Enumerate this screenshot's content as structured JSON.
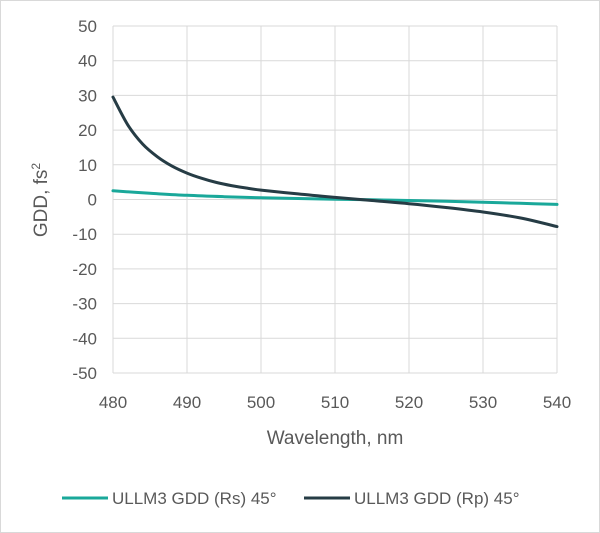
{
  "chart_data": {
    "type": "line",
    "title": "",
    "xlabel": "Wavelength, nm",
    "ylabel_main": "GDD, fs",
    "ylabel_sup": "2",
    "xlim": [
      480,
      540
    ],
    "ylim": [
      -50,
      50
    ],
    "x_ticks": [
      "480",
      "490",
      "500",
      "510",
      "520",
      "530",
      "540"
    ],
    "y_ticks": [
      "50",
      "40",
      "30",
      "20",
      "10",
      "0",
      "-10",
      "-20",
      "-30",
      "-40",
      "-50"
    ],
    "grid": true,
    "legend_position": "bottom",
    "series": [
      {
        "name": "ULLM3 GDD (Rs) 45°",
        "color": "#1aa89a",
        "x": [
          480,
          485,
          490,
          495,
          500,
          505,
          510,
          515,
          520,
          525,
          530,
          535,
          540
        ],
        "y": [
          2.5,
          1.8,
          1.2,
          0.8,
          0.5,
          0.3,
          0.1,
          -0.1,
          -0.3,
          -0.5,
          -0.8,
          -1.1,
          -1.4
        ]
      },
      {
        "name": "ULLM3 GDD (Rp) 45°",
        "color": "#263c45",
        "x": [
          480,
          482,
          484,
          486,
          488,
          490,
          492,
          494,
          496,
          498,
          500,
          505,
          510,
          515,
          520,
          525,
          530,
          535,
          540
        ],
        "y": [
          29.5,
          21.5,
          16.0,
          12.3,
          9.6,
          7.6,
          6.1,
          4.9,
          4.0,
          3.3,
          2.7,
          1.6,
          0.6,
          -0.3,
          -1.2,
          -2.3,
          -3.6,
          -5.3,
          -7.8
        ]
      }
    ]
  }
}
